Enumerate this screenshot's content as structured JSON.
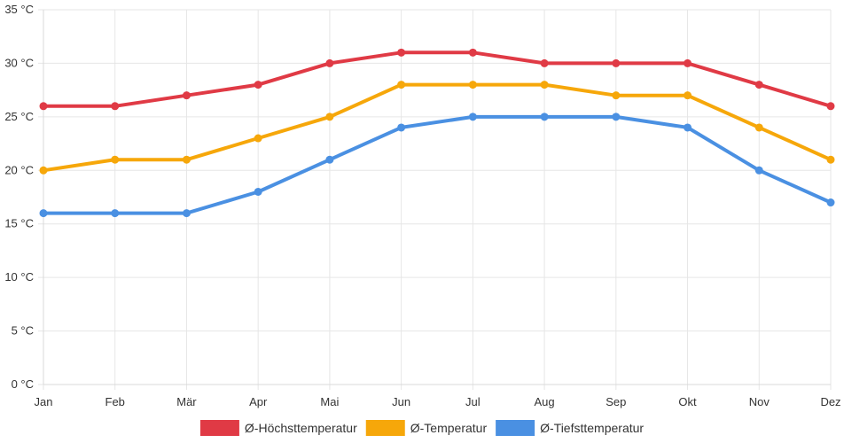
{
  "chart_data": {
    "type": "line",
    "title": "",
    "xlabel": "",
    "ylabel": "",
    "categories": [
      "Jan",
      "Feb",
      "Mär",
      "Apr",
      "Mai",
      "Jun",
      "Jul",
      "Aug",
      "Sep",
      "Okt",
      "Nov",
      "Dez"
    ],
    "ylim": [
      0,
      35
    ],
    "ytick_step": 5,
    "y_unit": " °C",
    "grid": true,
    "legend_position": "bottom-center",
    "series": [
      {
        "name": "Ø-Höchsttemperatur",
        "color": "#e03a45",
        "values": [
          26,
          26,
          27,
          28,
          30,
          31,
          31,
          30,
          30,
          30,
          28,
          26
        ]
      },
      {
        "name": "Ø-Temperatur",
        "color": "#f6a70a",
        "values": [
          20,
          21,
          21,
          23,
          25,
          28,
          28,
          28,
          27,
          27,
          24,
          21
        ]
      },
      {
        "name": "Ø-Tiefsttemperatur",
        "color": "#4a90e2",
        "values": [
          16,
          16,
          16,
          18,
          21,
          24,
          25,
          25,
          25,
          24,
          20,
          17
        ]
      }
    ]
  }
}
